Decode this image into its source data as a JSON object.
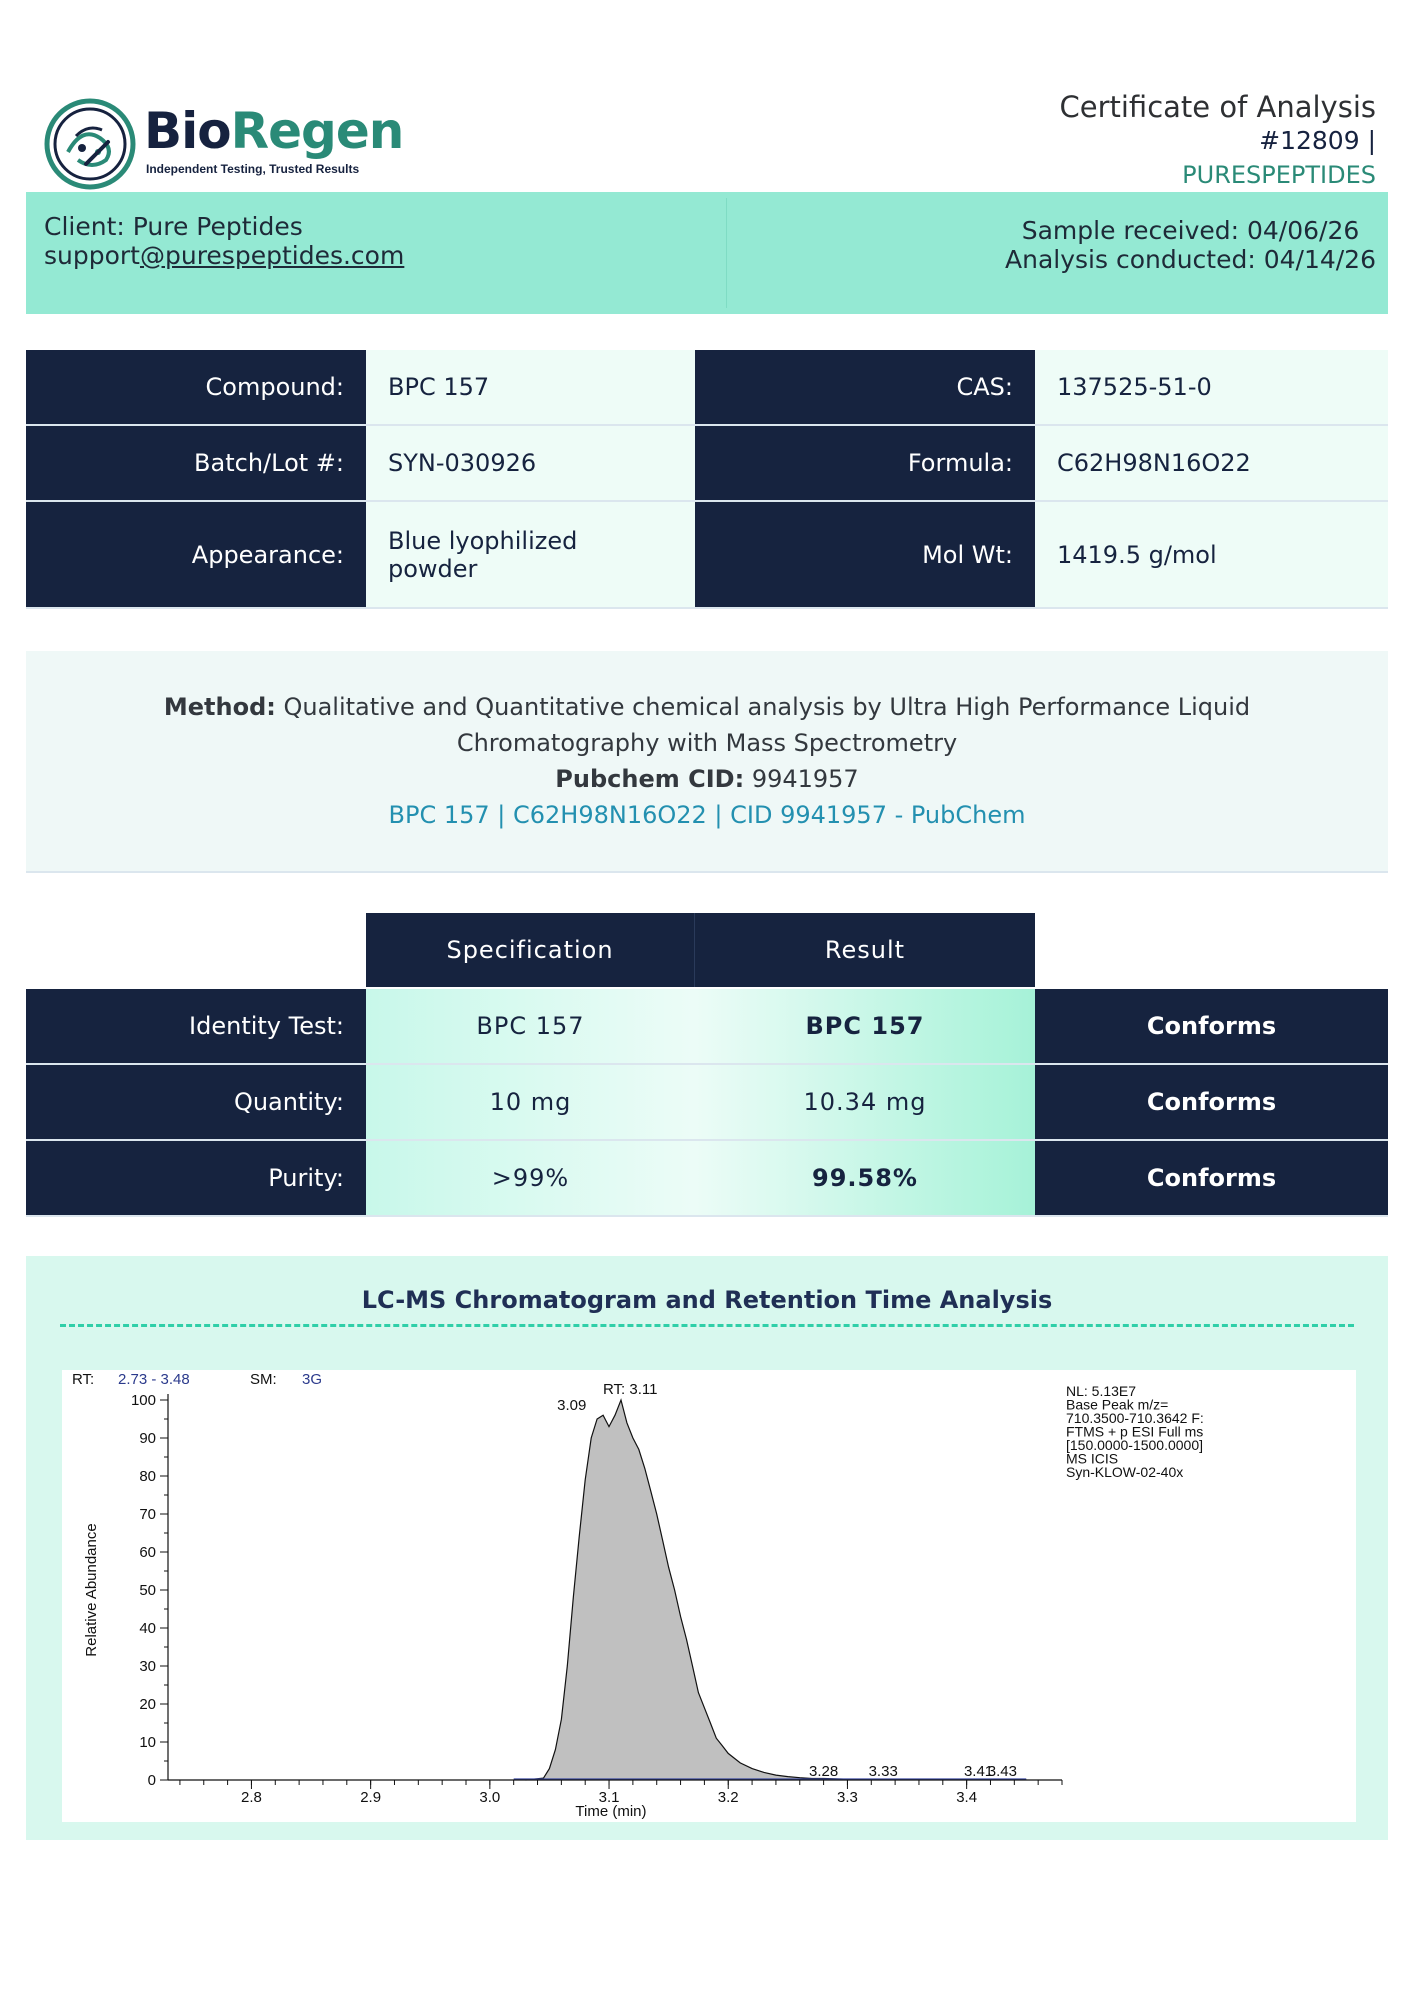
{
  "header": {
    "logo_bio": "Bio",
    "logo_regen": "Regen",
    "logo_tagline": "Independent Testing, Trusted Results",
    "cert_title": "Certificate of Analysis",
    "cert_number": "#12809 |",
    "cert_client": "PURESPEPTIDES"
  },
  "client": {
    "name_line": "Client: Pure Peptides",
    "email_user": "support",
    "email_domain": "@purespeptides.com",
    "sample_received": "Sample received: 04/06/26",
    "analysis_conducted": "Analysis conducted: 04/14/26"
  },
  "info": {
    "compound_label": "Compound:",
    "compound_value": "BPC 157",
    "cas_label": "CAS:",
    "cas_value": "137525-51-0",
    "batch_label": "Batch/Lot #:",
    "batch_value": "SYN-030926",
    "formula_label": "Formula:",
    "formula_value": "C62H98N16O22",
    "appearance_label": "Appearance:",
    "appearance_value_1": "Blue lyophilized",
    "appearance_value_2": "powder",
    "molwt_label": "Mol Wt:",
    "molwt_value": "1419.5 g/mol"
  },
  "method": {
    "label": "Method:",
    "text_1": "Qualitative and Quantitative chemical analysis by Ultra High Performance Liquid",
    "text_2": "Chromatography with Mass Spectrometry",
    "pubchem_label": "Pubchem CID:",
    "pubchem_cid": "9941957",
    "pubchem_link": "BPC 157 | C62H98N16O22 | CID 9941957 - PubChem"
  },
  "results": {
    "spec_header": "Specification",
    "result_header": "Result",
    "rows": [
      {
        "label": "Identity Test:",
        "spec": "BPC 157",
        "result": "BPC 157",
        "status": "Conforms"
      },
      {
        "label": "Quantity:",
        "spec": "10 mg",
        "result": "10.34 mg",
        "status": "Conforms"
      },
      {
        "label": "Purity:",
        "spec": ">99%",
        "result": "99.58%",
        "status": "Conforms"
      }
    ]
  },
  "chromatogram": {
    "title": "LC-MS Chromatogram and Retention Time Analysis",
    "rt_label": "RT:",
    "rt_range": "2.73 - 3.48",
    "sm_label": "SM:",
    "sm_value": "3G",
    "peak_rt_label": "RT: 3.11",
    "peak_label_left": "3.09",
    "info_lines": [
      "NL: 5.13E7",
      "Base Peak m/z=",
      "710.3500-710.3642 F:",
      "FTMS + p ESI Full ms",
      "[150.0000-1500.0000]",
      "MS  ICIS",
      "Syn-KLOW-02-40x"
    ],
    "small_peak_labels": [
      "3.28",
      "3.33",
      "3.41",
      "3.43"
    ],
    "small_peak_x": [
      3.28,
      3.33,
      3.41,
      3.43
    ],
    "xlabel": "Time (min)",
    "ylabel": "Relative Abundance",
    "x_ticks": [
      "2.8",
      "2.9",
      "3.0",
      "3.1",
      "3.2",
      "3.3",
      "3.4"
    ],
    "y_ticks": [
      "0",
      "10",
      "20",
      "30",
      "40",
      "50",
      "60",
      "70",
      "80",
      "90",
      "100"
    ],
    "xlim": [
      2.73,
      3.48
    ],
    "ylim": [
      0,
      100
    ],
    "fill_color": "#c0c0c0",
    "trace": [
      [
        3.03,
        0
      ],
      [
        3.045,
        0.5
      ],
      [
        3.05,
        3
      ],
      [
        3.055,
        8
      ],
      [
        3.06,
        16
      ],
      [
        3.065,
        30
      ],
      [
        3.07,
        48
      ],
      [
        3.075,
        64
      ],
      [
        3.08,
        79
      ],
      [
        3.085,
        90
      ],
      [
        3.09,
        95
      ],
      [
        3.095,
        96
      ],
      [
        3.1,
        93
      ],
      [
        3.105,
        96
      ],
      [
        3.11,
        100
      ],
      [
        3.115,
        94
      ],
      [
        3.12,
        90
      ],
      [
        3.125,
        87
      ],
      [
        3.13,
        82
      ],
      [
        3.135,
        76
      ],
      [
        3.14,
        70
      ],
      [
        3.145,
        63
      ],
      [
        3.15,
        56
      ],
      [
        3.155,
        50
      ],
      [
        3.16,
        43
      ],
      [
        3.165,
        37
      ],
      [
        3.17,
        30
      ],
      [
        3.175,
        23
      ],
      [
        3.18,
        19
      ],
      [
        3.185,
        15
      ],
      [
        3.19,
        11
      ],
      [
        3.195,
        9
      ],
      [
        3.2,
        7
      ],
      [
        3.21,
        4.5
      ],
      [
        3.22,
        3
      ],
      [
        3.23,
        2
      ],
      [
        3.24,
        1.3
      ],
      [
        3.25,
        0.9
      ],
      [
        3.26,
        0.6
      ],
      [
        3.27,
        0.4
      ],
      [
        3.28,
        0.4
      ],
      [
        3.3,
        0.2
      ],
      [
        3.35,
        0.1
      ],
      [
        3.45,
        0.1
      ]
    ]
  }
}
